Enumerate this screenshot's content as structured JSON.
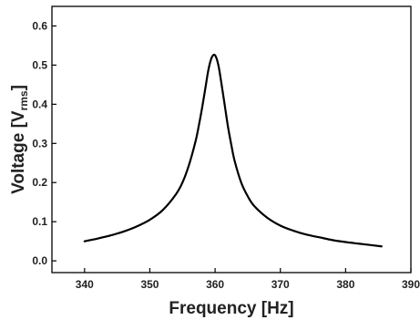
{
  "chart_data": {
    "type": "line",
    "xlabel": "Frequency [Hz]",
    "ylabel": {
      "prefix": "Voltage [V",
      "subscript": "rms",
      "suffix": "]"
    },
    "xlim": [
      335,
      390
    ],
    "ylim": [
      -0.03,
      0.65
    ],
    "xticks": [
      340,
      350,
      360,
      370,
      380,
      390
    ],
    "yticks": [
      0.0,
      0.1,
      0.2,
      0.3,
      0.4,
      0.5,
      0.6
    ],
    "xtick_labels": [
      "340",
      "350",
      "360",
      "370",
      "380",
      "390"
    ],
    "ytick_labels": [
      "0.0",
      "0.1",
      "0.2",
      "0.3",
      "0.4",
      "0.5",
      "0.6"
    ],
    "grid": false,
    "line_color": "#000000",
    "series": [
      {
        "x": [
          340,
          342,
          344,
          346,
          348,
          350,
          352,
          354,
          355,
          356,
          357,
          357.5,
          358,
          358.5,
          359,
          359.5,
          360,
          360.5,
          361,
          361.5,
          362,
          362.5,
          363,
          364,
          365,
          366,
          368,
          370,
          372,
          374,
          376,
          378,
          380,
          382,
          384,
          385.5
        ],
        "y": [
          0.05,
          0.057,
          0.065,
          0.075,
          0.088,
          0.105,
          0.13,
          0.17,
          0.2,
          0.245,
          0.305,
          0.345,
          0.39,
          0.44,
          0.49,
          0.52,
          0.525,
          0.5,
          0.45,
          0.395,
          0.34,
          0.295,
          0.255,
          0.2,
          0.165,
          0.14,
          0.11,
          0.09,
          0.077,
          0.067,
          0.06,
          0.053,
          0.048,
          0.044,
          0.04,
          0.037
        ]
      }
    ]
  }
}
